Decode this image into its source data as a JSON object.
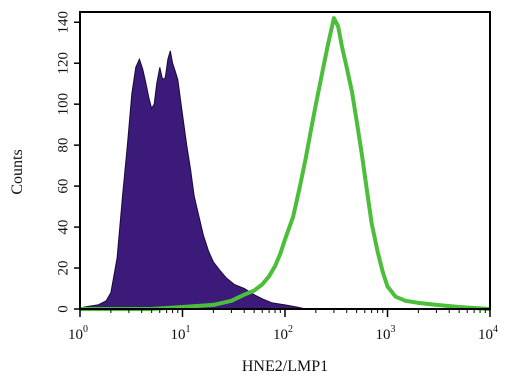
{
  "chart_data": {
    "type": "area",
    "title": "",
    "xlabel": "HNE2/LMP1",
    "ylabel": "Counts",
    "x_scale": "log",
    "xlim": [
      1,
      10000
    ],
    "ylim": [
      0,
      145
    ],
    "x_ticks": [
      {
        "base": "10",
        "exp": "0"
      },
      {
        "base": "10",
        "exp": "1"
      },
      {
        "base": "10",
        "exp": "2"
      },
      {
        "base": "10",
        "exp": "3"
      },
      {
        "base": "10",
        "exp": "4"
      }
    ],
    "y_ticks": [
      "0",
      "20",
      "40",
      "60",
      "80",
      "100",
      "120",
      "140"
    ],
    "y_tick_values": [
      0,
      20,
      40,
      60,
      80,
      100,
      120,
      140
    ],
    "grid": false,
    "legend": "none",
    "series": [
      {
        "style": "filled",
        "color": "#3b1a7a",
        "x": [
          1.1,
          1.5,
          1.8,
          2.0,
          2.3,
          2.6,
          2.9,
          3.2,
          3.5,
          3.8,
          4.1,
          4.4,
          4.7,
          5.0,
          5.3,
          5.6,
          6.0,
          6.4,
          6.8,
          7.2,
          7.6,
          8.0,
          8.5,
          9.0,
          10.0,
          11.0,
          12.0,
          13.0,
          14.5,
          16.0,
          18.0,
          20.0,
          23.0,
          27.0,
          32.0,
          40.0,
          50.0,
          60.0,
          75.0,
          100.0,
          130.0,
          160.0
        ],
        "y": [
          1,
          2,
          4,
          8,
          25,
          55,
          80,
          105,
          118,
          122,
          117,
          110,
          103,
          98,
          100,
          110,
          118,
          112,
          113,
          122,
          126,
          120,
          116,
          112,
          95,
          80,
          68,
          55,
          45,
          36,
          28,
          23,
          19,
          15,
          12,
          10,
          7,
          5,
          3,
          2,
          1,
          0
        ]
      },
      {
        "style": "outline",
        "color": "#4bbf3a",
        "x": [
          1.0,
          5.0,
          10.0,
          20.0,
          30.0,
          40.0,
          50.0,
          60.0,
          70.0,
          80.0,
          90.0,
          100.0,
          120.0,
          140.0,
          160.0,
          180.0,
          200.0,
          230.0,
          260.0,
          300.0,
          330.0,
          360.0,
          400.0,
          450.0,
          500.0,
          560.0,
          630.0,
          700.0,
          800.0,
          900.0,
          1000.0,
          1200.0,
          1500.0,
          2000.0,
          3000.0,
          5000.0,
          10000.0
        ],
        "y": [
          0,
          0,
          1,
          2,
          4,
          7,
          9,
          12,
          16,
          21,
          27,
          34,
          45,
          60,
          74,
          88,
          100,
          115,
          128,
          142,
          138,
          128,
          118,
          106,
          92,
          76,
          58,
          42,
          28,
          18,
          11,
          6,
          4,
          3,
          2,
          1,
          0
        ]
      }
    ]
  }
}
